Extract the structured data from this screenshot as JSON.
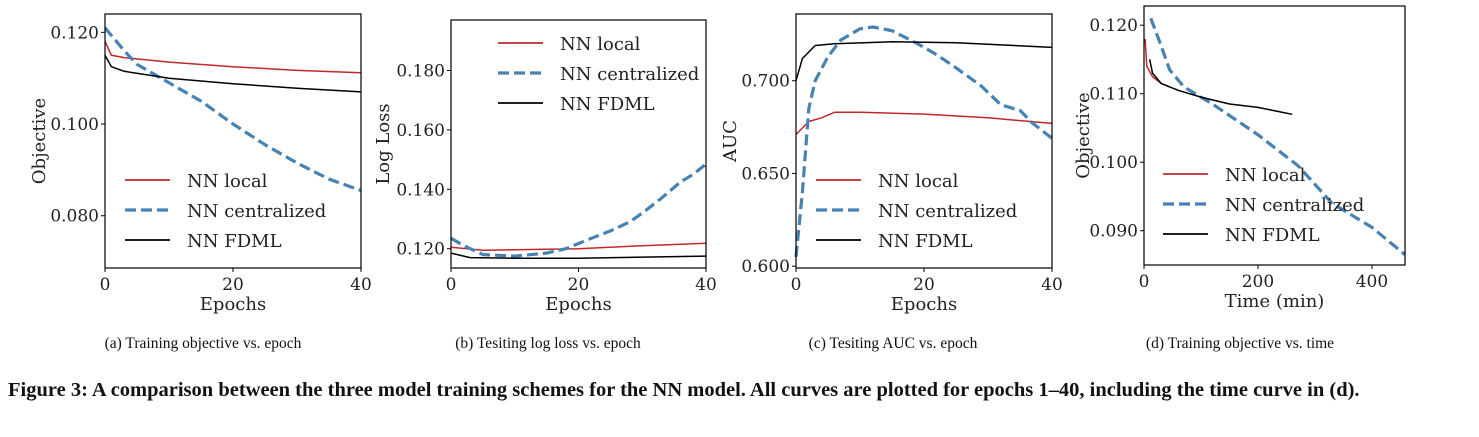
{
  "colors": {
    "local": "#c0282a",
    "centralized": "#4682b4",
    "fdml": "#000000"
  },
  "legend": [
    "NN local",
    "NN centralized",
    "NN FDML"
  ],
  "chart_data": [
    {
      "type": "line",
      "title": "",
      "xlabel": "Epochs",
      "ylabel": "Objective",
      "xlim": [
        0,
        40
      ],
      "ylim": [
        0.0686,
        0.124
      ],
      "xticks": [
        "0",
        "20",
        "40"
      ],
      "yticks": [
        "0.080",
        "0.100",
        "0.120"
      ],
      "legend_position": "bottom-left",
      "grid": false,
      "series": [
        {
          "name": "NN local",
          "style": "solid",
          "x": [
            0,
            1,
            3,
            10,
            20,
            30,
            40
          ],
          "y": [
            0.118,
            0.115,
            0.1145,
            0.1135,
            0.1125,
            0.1117,
            0.1112
          ]
        },
        {
          "name": "NN centralized",
          "style": "dashed",
          "x": [
            0,
            3,
            5,
            10,
            15,
            20,
            25,
            30,
            35,
            40
          ],
          "y": [
            0.121,
            0.116,
            0.113,
            0.109,
            0.105,
            0.1,
            0.0955,
            0.0915,
            0.088,
            0.0855
          ]
        },
        {
          "name": "NN FDML",
          "style": "solid",
          "x": [
            0,
            1,
            3,
            10,
            20,
            30,
            40
          ],
          "y": [
            0.115,
            0.1125,
            0.1115,
            0.11,
            0.1088,
            0.1078,
            0.107
          ]
        }
      ]
    },
    {
      "type": "line",
      "title": "",
      "xlabel": "Epochs",
      "ylabel": "Log Loss",
      "xlim": [
        0,
        40
      ],
      "ylim": [
        0.1135,
        0.197
      ],
      "xticks": [
        "0",
        "20",
        "40"
      ],
      "yticks": [
        "0.120",
        "0.140",
        "0.160",
        "0.180"
      ],
      "legend_position": "top-right",
      "grid": false,
      "series": [
        {
          "name": "NN local",
          "style": "solid",
          "x": [
            0,
            5,
            15,
            20,
            30,
            40
          ],
          "y": [
            0.1205,
            0.1195,
            0.1198,
            0.12,
            0.121,
            0.1218
          ]
        },
        {
          "name": "NN centralized",
          "style": "dashed",
          "x": [
            0,
            2,
            5,
            10,
            15,
            18,
            22,
            25,
            28,
            30,
            33,
            36,
            38,
            40
          ],
          "y": [
            0.1235,
            0.121,
            0.118,
            0.1175,
            0.1185,
            0.12,
            0.1235,
            0.126,
            0.129,
            0.132,
            0.137,
            0.1425,
            0.145,
            0.1485
          ]
        },
        {
          "name": "NN FDML",
          "style": "solid",
          "x": [
            0,
            3,
            10,
            20,
            40
          ],
          "y": [
            0.1185,
            0.117,
            0.1168,
            0.1168,
            0.1175
          ]
        }
      ]
    },
    {
      "type": "line",
      "title": "",
      "xlabel": "Epochs",
      "ylabel": "AUC",
      "xlim": [
        0,
        40
      ],
      "ylim": [
        0.599,
        0.736
      ],
      "xticks": [
        "0",
        "20",
        "40"
      ],
      "yticks": [
        "0.600",
        "0.650",
        "0.700"
      ],
      "legend_position": "bottom-left",
      "grid": false,
      "series": [
        {
          "name": "NN local",
          "style": "solid",
          "x": [
            0,
            2,
            4,
            6,
            10,
            20,
            30,
            40
          ],
          "y": [
            0.671,
            0.678,
            0.68,
            0.683,
            0.683,
            0.682,
            0.68,
            0.677
          ]
        },
        {
          "name": "NN centralized",
          "style": "dashed",
          "x": [
            0,
            1,
            2,
            3,
            5,
            7,
            10,
            12,
            15,
            19,
            22,
            25,
            29,
            32,
            35,
            37,
            40
          ],
          "y": [
            0.605,
            0.64,
            0.685,
            0.7,
            0.713,
            0.722,
            0.728,
            0.729,
            0.727,
            0.72,
            0.714,
            0.707,
            0.697,
            0.687,
            0.684,
            0.677,
            0.669
          ]
        },
        {
          "name": "NN FDML",
          "style": "solid",
          "x": [
            0,
            1,
            3,
            6,
            15,
            25,
            40
          ],
          "y": [
            0.7,
            0.712,
            0.719,
            0.72,
            0.721,
            0.7205,
            0.718
          ]
        }
      ]
    },
    {
      "type": "line",
      "title": "",
      "xlabel": "Time (min)",
      "ylabel": "Objective",
      "xlim": [
        0,
        458
      ],
      "ylim": [
        0.085,
        0.1228
      ],
      "xticks": [
        "0",
        "200",
        "400"
      ],
      "yticks": [
        "0.090",
        "0.100",
        "0.110",
        "0.120"
      ],
      "legend_position": "bottom-left",
      "grid": false,
      "series": [
        {
          "name": "NN local",
          "style": "solid",
          "x": [
            2,
            5,
            15,
            30,
            45
          ],
          "y": [
            0.118,
            0.114,
            0.1125,
            0.1115,
            0.111
          ]
        },
        {
          "name": "NN centralized",
          "style": "dashed",
          "x": [
            12,
            30,
            45,
            70,
            120,
            200,
            270,
            330,
            400,
            458
          ],
          "y": [
            0.121,
            0.117,
            0.1135,
            0.111,
            0.1085,
            0.104,
            0.0995,
            0.094,
            0.0905,
            0.0865
          ]
        },
        {
          "name": "NN FDML",
          "style": "solid",
          "x": [
            10,
            15,
            30,
            60,
            100,
            150,
            200,
            260
          ],
          "y": [
            0.115,
            0.113,
            0.1115,
            0.1105,
            0.1095,
            0.1085,
            0.108,
            0.107
          ]
        }
      ]
    }
  ],
  "subcaptions": [
    "(a)  Training objective vs. epoch",
    "(b)  Tesiting log loss vs. epoch",
    "(c)  Tesiting AUC vs. epoch",
    "(d)  Training objective vs. time"
  ],
  "caption": "Figure 3: A comparison between the three model training schemes for the NN model. All curves are plotted for epochs 1–40, including the time curve in (d)."
}
